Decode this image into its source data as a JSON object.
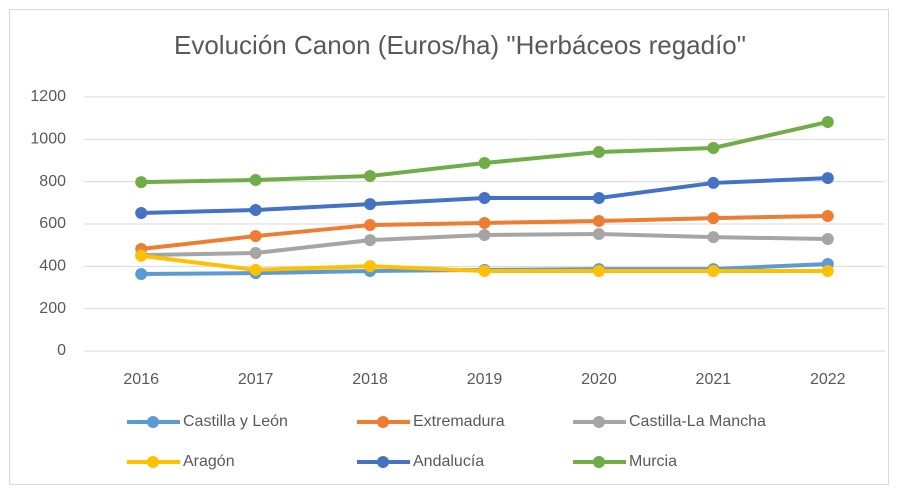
{
  "chart_data": {
    "type": "line",
    "title": "Evolución Canon (Euros/ha) \"Herbáceos regadío\"",
    "categories": [
      "2016",
      "2017",
      "2018",
      "2019",
      "2020",
      "2021",
      "2022"
    ],
    "series": [
      {
        "name": "Castilla y León",
        "color": "#5b9bd5",
        "values": [
          364,
          368,
          378,
          383,
          387,
          387,
          411
        ]
      },
      {
        "name": "Extremadura",
        "color": "#ed7d31",
        "values": [
          482,
          543,
          595,
          605,
          614,
          628,
          638
        ]
      },
      {
        "name": "Castilla-La Mancha",
        "color": "#a5a5a5",
        "values": [
          453,
          463,
          524,
          548,
          553,
          538,
          529
        ]
      },
      {
        "name": "Aragón",
        "color": "#ffc000",
        "values": [
          450,
          383,
          401,
          378,
          378,
          378,
          378
        ]
      },
      {
        "name": "Andalucía",
        "color": "#4472c4",
        "values": [
          652,
          666,
          694,
          723,
          723,
          794,
          817
        ]
      },
      {
        "name": "Murcia",
        "color": "#70ad47",
        "values": [
          798,
          808,
          827,
          888,
          940,
          959,
          1082
        ]
      }
    ],
    "ylim": [
      0,
      1200
    ],
    "yticks": [
      0,
      200,
      400,
      600,
      800,
      1000,
      1200
    ],
    "grid": true,
    "legend": "bottom"
  }
}
